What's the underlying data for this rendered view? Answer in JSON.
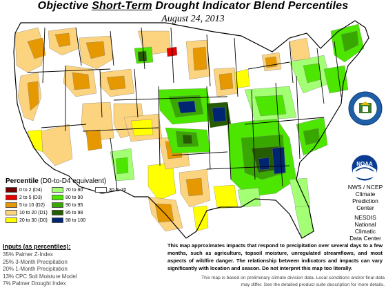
{
  "title": {
    "pre": "Objective ",
    "underlined": "Short-Term",
    "post": " Drought Indicator Blend Percentiles"
  },
  "date": "August 24, 2013",
  "legend": {
    "heading": "Percentile",
    "heading_note": "(D0-to-D4 equivalent)",
    "items": [
      {
        "label": "0 to 2  (D4)",
        "color": "#730000"
      },
      {
        "label": "2 to 5  (D3)",
        "color": "#e60000"
      },
      {
        "label": "5 to 10  (D2)",
        "color": "#e69800"
      },
      {
        "label": "10 to 20  (D1)",
        "color": "#fcd37f"
      },
      {
        "label": "20 to 30  (D0)",
        "color": "#ffff00"
      },
      {
        "label": "70 to 80",
        "color": "#a3ff73"
      },
      {
        "label": "80 to 90",
        "color": "#4ce600"
      },
      {
        "label": "90 to 95",
        "color": "#38a800"
      },
      {
        "label": "95 to 98",
        "color": "#265c00"
      },
      {
        "label": "98 to 100",
        "color": "#002673"
      },
      {
        "label": "30 to 70",
        "color": "#ffffff"
      }
    ]
  },
  "inputs": {
    "heading": "Inputs (as percentiles):",
    "items": [
      "35% Palmer Z-Index",
      "25% 3-Month Precipitation",
      "20% 1-Month Precipitation",
      "13% CPC Soil Moisture Model",
      "7% Palmer Drought Index"
    ]
  },
  "description": "This map approximates impacts that respond to precipitation over several days to a few months, such as agriculture, topsoil moisture, unregulated streamflows, and most aspects of wildfire danger. The relationship between indicators and impacts can vary significantly with location and season. Do not interpret this map too literally.",
  "footer": "This map is based on preliminary climate division data. Local conditions and/or final data may differ. See the detailed product suite description for more details.",
  "agencies": {
    "noaa_logo": "NOAA",
    "line1": "NWS / NCEP",
    "line2": "Climate",
    "line3": "Prediction",
    "line4": "Center",
    "line5": "NESDIS",
    "line6": "National",
    "line7": "Climatic",
    "line8": "Data Center"
  },
  "colors": {
    "D4": "#730000",
    "D3": "#e60000",
    "D2": "#e69800",
    "D1": "#fcd37f",
    "D0": "#ffff00",
    "W1": "#a3ff73",
    "W2": "#4ce600",
    "W3": "#38a800",
    "W4": "#265c00",
    "W5": "#002673",
    "neutral": "#ffffff"
  }
}
